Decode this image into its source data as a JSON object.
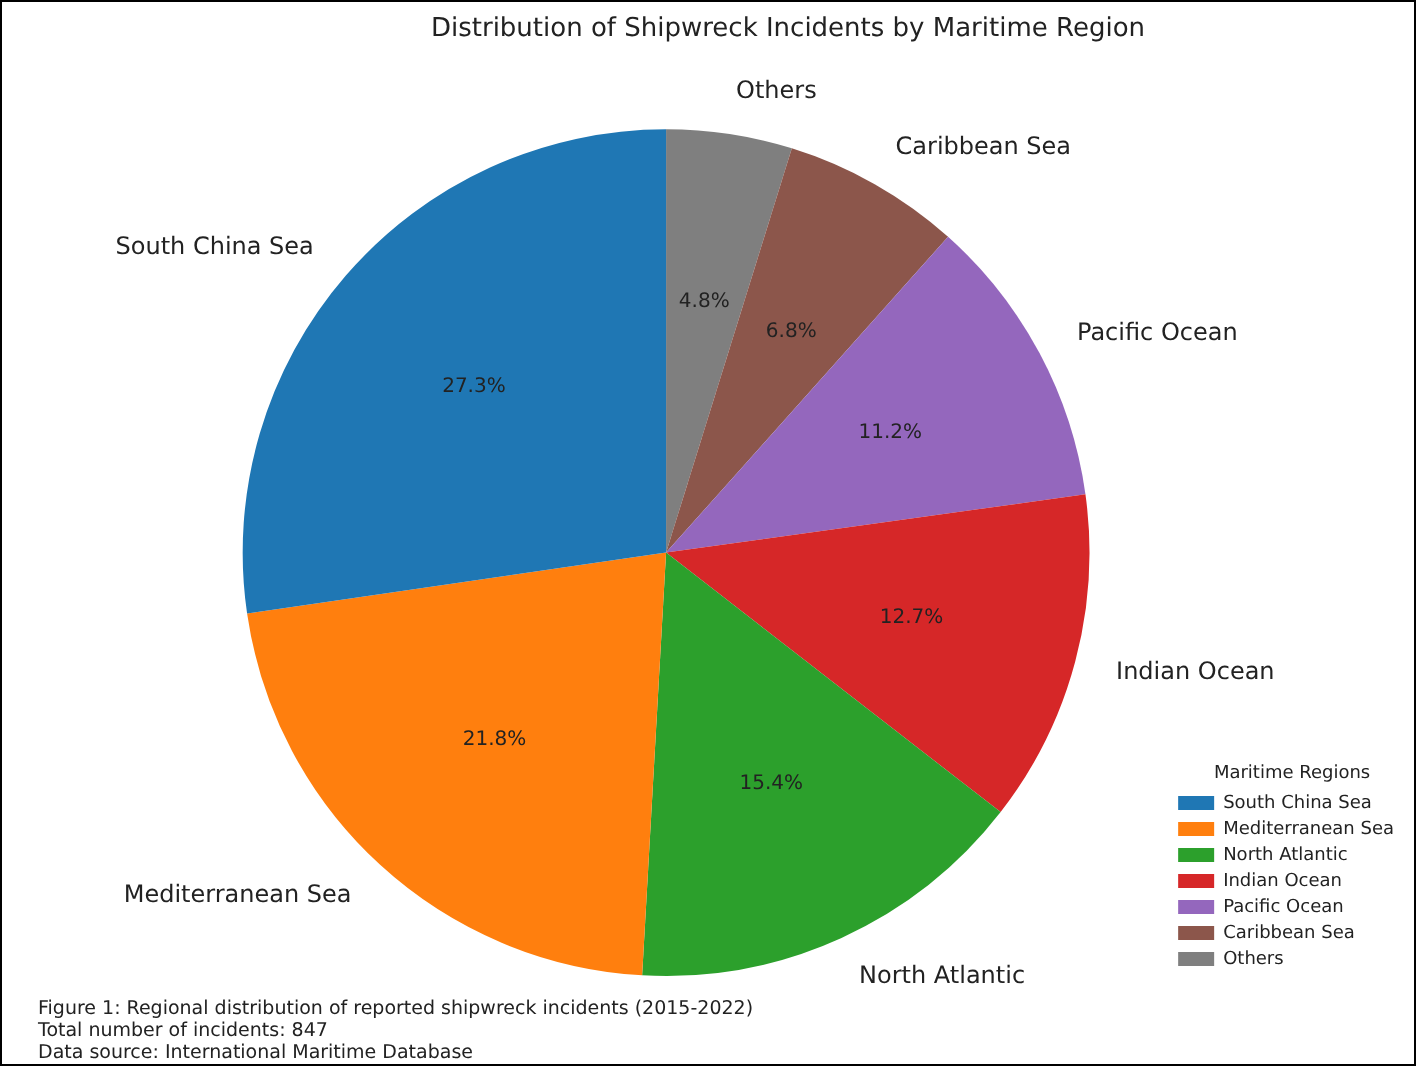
{
  "chart_data": {
    "type": "pie",
    "title": "Distribution of Shipwreck Incidents by Maritime Region",
    "categories": [
      "South China Sea",
      "Mediterranean Sea",
      "North Atlantic",
      "Indian Ocean",
      "Pacific Ocean",
      "Caribbean Sea",
      "Others"
    ],
    "values": [
      27.3,
      21.8,
      15.4,
      12.7,
      11.2,
      6.8,
      4.8
    ],
    "value_labels": [
      "27.3%",
      "21.8%",
      "15.4%",
      "12.7%",
      "11.2%",
      "6.8%",
      "4.8%"
    ],
    "colors": [
      "#1f77b4",
      "#ff7f0e",
      "#2ca02c",
      "#d62728",
      "#9467bd",
      "#8c564b",
      "#7f7f7f"
    ],
    "legend": "right",
    "legend_title": "Maritime Regions",
    "annotations": [
      "Figure 1: Regional distribution of reported shipwreck incidents (2015-2022)",
      "Total number of incidents: 847",
      "Data source: International Maritime Database"
    ]
  }
}
